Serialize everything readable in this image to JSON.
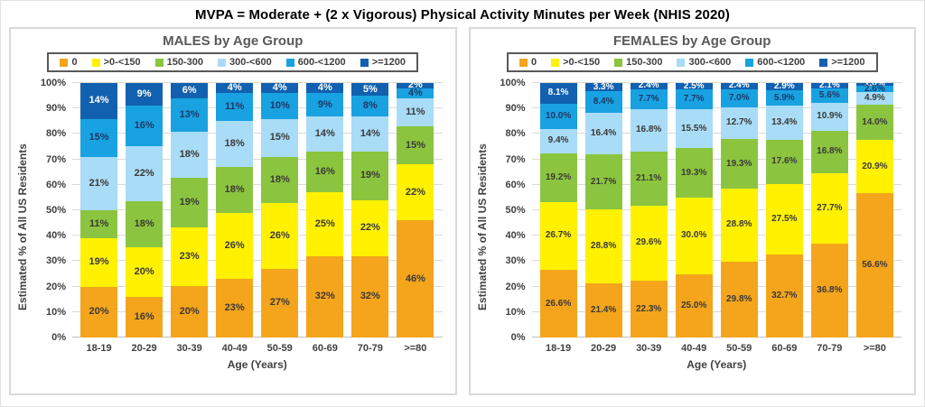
{
  "title": "MVPA = Moderate + (2 x Vigorous) Physical Activity Minutes per Week (NHIS 2020)",
  "chart_data": [
    {
      "type": "bar",
      "stacked": true,
      "title": "MALES by Age Group",
      "xlabel": "Age (Years)",
      "ylabel": "Estimated % of All US Residents",
      "ylim": [
        0,
        100
      ],
      "grid": true,
      "legend_position": "top",
      "categories": [
        "18-19",
        "20-29",
        "30-39",
        "40-49",
        "50-59",
        "60-69",
        "70-79",
        ">=80"
      ],
      "yticks": [
        "0%",
        "10%",
        "20%",
        "30%",
        "40%",
        "50%",
        "60%",
        "70%",
        "80%",
        "90%",
        "100%"
      ],
      "series": [
        {
          "name": "0",
          "color": "#F4A51C",
          "text": "#3b3838",
          "values": [
            20,
            16,
            20,
            23,
            27,
            32,
            32,
            46
          ],
          "labels": [
            "20%",
            "16%",
            "20%",
            "23%",
            "27%",
            "32%",
            "32%",
            "46%"
          ]
        },
        {
          "name": ">0-<150",
          "color": "#FFF100",
          "text": "#3b3838",
          "values": [
            19,
            20,
            23,
            26,
            26,
            25,
            22,
            22
          ],
          "labels": [
            "19%",
            "20%",
            "23%",
            "26%",
            "26%",
            "25%",
            "22%",
            "22%"
          ]
        },
        {
          "name": "150-300",
          "color": "#8BC53F",
          "text": "#3b3838",
          "values": [
            11,
            18,
            19,
            18,
            18,
            16,
            19,
            15
          ],
          "labels": [
            "11%",
            "18%",
            "19%",
            "18%",
            "18%",
            "16%",
            "19%",
            "15%"
          ]
        },
        {
          "name": "300-<600",
          "color": "#A9DCF6",
          "text": "#3b3838",
          "values": [
            21,
            22,
            18,
            18,
            15,
            14,
            14,
            11
          ],
          "labels": [
            "21%",
            "22%",
            "18%",
            "18%",
            "15%",
            "14%",
            "14%",
            "11%"
          ]
        },
        {
          "name": "600-<1200",
          "color": "#18A2E2",
          "text": "#1f3864",
          "values": [
            15,
            16,
            13,
            11,
            10,
            9,
            8,
            4
          ],
          "labels": [
            "15%",
            "16%",
            "13%",
            "11%",
            "10%",
            "9%",
            "8%",
            "4%"
          ]
        },
        {
          "name": ">=1200",
          "color": "#1261B0",
          "text": "#ffffff",
          "values": [
            14,
            9,
            6,
            4,
            4,
            4,
            5,
            2
          ],
          "labels": [
            "14%",
            "9%",
            "6%",
            "4%",
            "4%",
            "4%",
            "5%",
            "2%"
          ]
        }
      ]
    },
    {
      "type": "bar",
      "stacked": true,
      "title": "FEMALES by Age Group",
      "xlabel": "Age (Years)",
      "ylabel": "Estimated % of All US Residents",
      "ylim": [
        0,
        100
      ],
      "grid": true,
      "legend_position": "top",
      "categories": [
        "18-19",
        "20-29",
        "30-39",
        "40-49",
        "50-59",
        "60-69",
        "70-79",
        ">=80"
      ],
      "yticks": [
        "0%",
        "10%",
        "20%",
        "30%",
        "40%",
        "50%",
        "60%",
        "70%",
        "80%",
        "90%",
        "100%"
      ],
      "series": [
        {
          "name": "0",
          "color": "#F4A51C",
          "text": "#3b3838",
          "values": [
            26.6,
            21.4,
            22.3,
            25.0,
            29.8,
            32.7,
            36.8,
            56.6
          ],
          "labels": [
            "26.6%",
            "21.4%",
            "22.3%",
            "25.0%",
            "29.8%",
            "32.7%",
            "36.8%",
            "56.6%"
          ]
        },
        {
          "name": ">0-<150",
          "color": "#FFF100",
          "text": "#3b3838",
          "values": [
            26.7,
            28.8,
            29.6,
            30.0,
            28.8,
            27.5,
            27.7,
            20.9
          ],
          "labels": [
            "26.7%",
            "28.8%",
            "29.6%",
            "30.0%",
            "28.8%",
            "27.5%",
            "27.7%",
            "20.9%"
          ]
        },
        {
          "name": "150-300",
          "color": "#8BC53F",
          "text": "#3b3838",
          "values": [
            19.2,
            21.7,
            21.1,
            19.3,
            19.3,
            17.6,
            16.8,
            14.0
          ],
          "labels": [
            "19.2%",
            "21.7%",
            "21.1%",
            "19.3%",
            "19.3%",
            "17.6%",
            "16.8%",
            "14.0%"
          ]
        },
        {
          "name": "300-<600",
          "color": "#A9DCF6",
          "text": "#3b3838",
          "values": [
            9.4,
            16.4,
            16.8,
            15.5,
            12.7,
            13.4,
            10.9,
            4.9
          ],
          "labels": [
            "9.4%",
            "16.4%",
            "16.8%",
            "15.5%",
            "12.7%",
            "13.4%",
            "10.9%",
            "4.9%"
          ]
        },
        {
          "name": "600-<1200",
          "color": "#18A2E2",
          "text": "#1f3864",
          "values": [
            10.0,
            8.4,
            7.7,
            7.7,
            7.0,
            5.9,
            5.6,
            2.6
          ],
          "labels": [
            "10.0%",
            "8.4%",
            "7.7%",
            "7.7%",
            "7.0%",
            "5.9%",
            "5.6%",
            "2.6%"
          ]
        },
        {
          "name": ">=1200",
          "color": "#1261B0",
          "text": "#ffffff",
          "values": [
            8.1,
            3.3,
            2.4,
            2.5,
            2.4,
            2.9,
            2.1,
            1.0
          ],
          "labels": [
            "8.1%",
            "3.3%",
            "2.4%",
            "2.5%",
            "2.4%",
            "2.9%",
            "2.1%",
            "1.0%"
          ]
        }
      ]
    }
  ]
}
